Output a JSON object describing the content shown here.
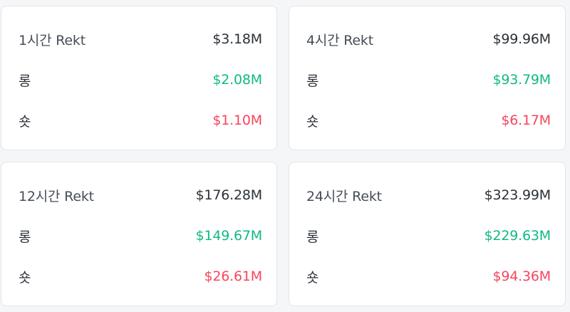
{
  "colors": {
    "long": "#12b886",
    "short": "#f6465d",
    "text": "#2b3139",
    "card_bg": "#ffffff",
    "page_bg": "#f5f6f8"
  },
  "cards": [
    {
      "title": "1시간 Rekt",
      "total": "$3.18M",
      "long_label": "롱",
      "long_value": "$2.08M",
      "short_label": "숏",
      "short_value": "$1.10M"
    },
    {
      "title": "4시간 Rekt",
      "total": "$99.96M",
      "long_label": "롱",
      "long_value": "$93.79M",
      "short_label": "숏",
      "short_value": "$6.17M"
    },
    {
      "title": "12시간 Rekt",
      "total": "$176.28M",
      "long_label": "롱",
      "long_value": "$149.67M",
      "short_label": "숏",
      "short_value": "$26.61M"
    },
    {
      "title": "24시간 Rekt",
      "total": "$323.99M",
      "long_label": "롱",
      "long_value": "$229.63M",
      "short_label": "숏",
      "short_value": "$94.36M"
    }
  ]
}
